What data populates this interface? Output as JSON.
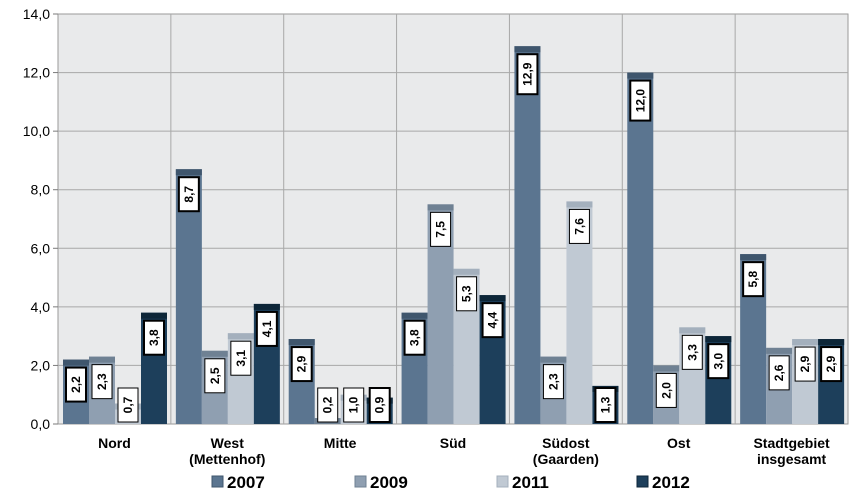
{
  "chart_data": {
    "type": "bar",
    "categories": [
      "Nord",
      "West (Mettenhof)",
      "Mitte",
      "Süd",
      "Südost (Gaarden)",
      "Ost",
      "Stadtgebiet insgesamt"
    ],
    "category_lines": [
      [
        "Nord"
      ],
      [
        "West",
        "(Mettenhof)"
      ],
      [
        "Mitte"
      ],
      [
        "Süd"
      ],
      [
        "Südost",
        "(Gaarden)"
      ],
      [
        "Ost"
      ],
      [
        "Stadtgebiet",
        "insgesamt"
      ]
    ],
    "series": [
      {
        "name": "2007",
        "values": [
          2.2,
          8.7,
          2.9,
          3.8,
          12.9,
          12.0,
          5.8
        ],
        "labels": [
          "2,2",
          "8,7",
          "2,9",
          "3,8",
          "12,9",
          "12,0",
          "5,8"
        ],
        "color": "#5b7590",
        "top_color": "#3f566d"
      },
      {
        "name": "2009",
        "values": [
          2.3,
          2.5,
          0.2,
          7.5,
          2.3,
          2.0,
          2.6
        ],
        "labels": [
          "2,3",
          "2,5",
          "0,2",
          "7,5",
          "2,3",
          "2,0",
          "2,6"
        ],
        "color": "#8f9fb1",
        "top_color": "#6f8193"
      },
      {
        "name": "2011",
        "values": [
          0.7,
          3.1,
          1.0,
          5.3,
          7.6,
          3.3,
          2.9
        ],
        "labels": [
          "0,7",
          "3,1",
          "1,0",
          "5,3",
          "7,6",
          "3,3",
          "2,9"
        ],
        "color": "#c0c9d3",
        "top_color": "#a4b0bd"
      },
      {
        "name": "2012",
        "values": [
          3.8,
          4.1,
          0.9,
          4.4,
          1.3,
          3.0,
          2.9
        ],
        "labels": [
          "3,8",
          "4,1",
          "0,9",
          "4,4",
          "1,3",
          "3,0",
          "2,9"
        ],
        "color": "#1d3f5b",
        "top_color": "#0d2638"
      }
    ],
    "y_ticks": [
      "0,0",
      "2,0",
      "4,0",
      "6,0",
      "8,0",
      "10,0",
      "12,0",
      "14,0"
    ],
    "ylim": [
      0,
      14
    ],
    "grid": true,
    "legend_position": "bottom",
    "title": "",
    "xlabel": "",
    "ylabel": ""
  }
}
